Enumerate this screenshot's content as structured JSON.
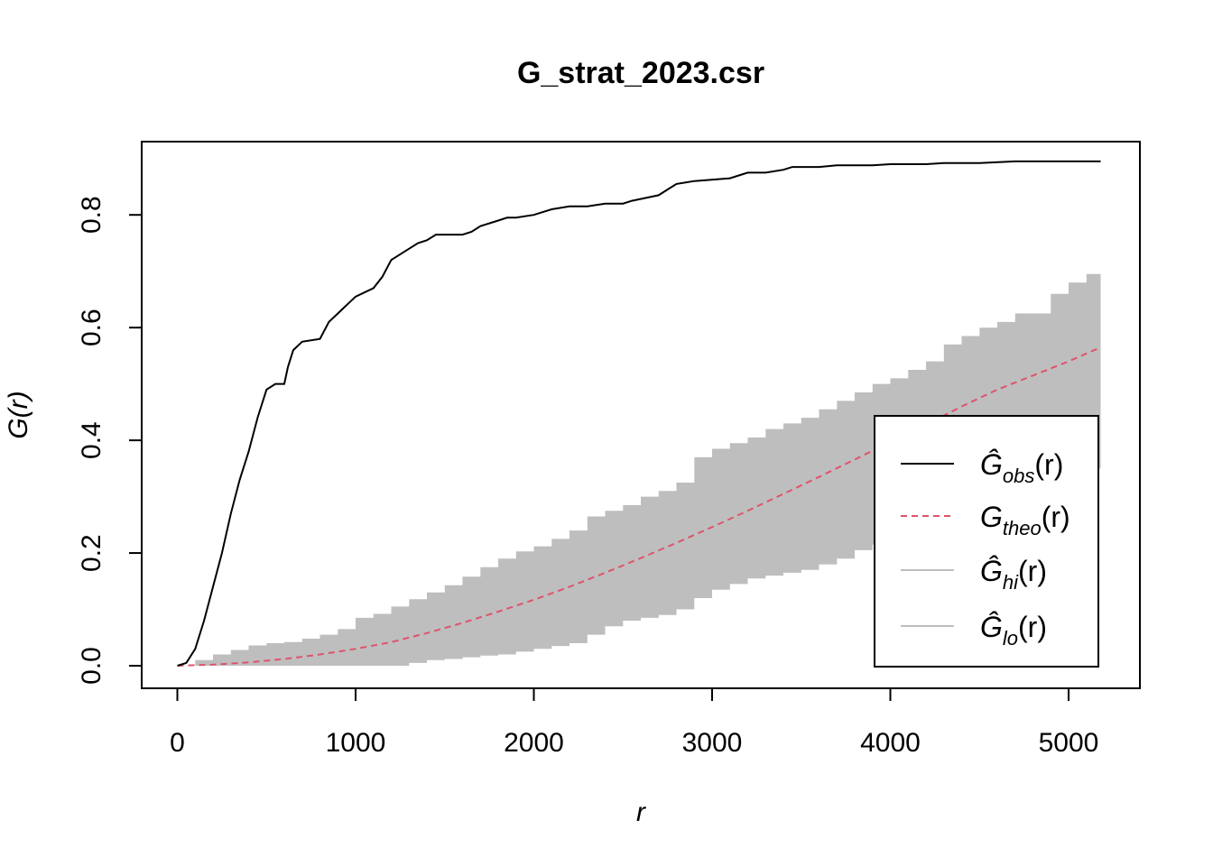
{
  "chart_data": {
    "type": "line",
    "title": "G_strat_2023.csr",
    "xlabel": "r",
    "ylabel": "G(r)",
    "xlim": [
      -200,
      5400
    ],
    "ylim": [
      -0.04,
      0.93
    ],
    "xticks": [
      0,
      1000,
      2000,
      3000,
      4000,
      5000
    ],
    "xtick_labels": [
      "0",
      "1000",
      "2000",
      "3000",
      "4000",
      "5000"
    ],
    "yticks": [
      0.0,
      0.2,
      0.4,
      0.6,
      0.8
    ],
    "ytick_labels": [
      "0.0",
      "0.2",
      "0.4",
      "0.6",
      "0.8"
    ],
    "grid": false,
    "legend_position": "bottom-right",
    "colors": {
      "obs": "#000000",
      "theo": "#DF536B",
      "envelope": "#BEBEBE"
    },
    "series": [
      {
        "key": "obs",
        "legend_main": "Ĝ",
        "legend_sub": "obs",
        "legend_tail": "(r)",
        "style": "solid",
        "x": [
          0,
          50,
          100,
          150,
          200,
          250,
          300,
          350,
          400,
          450,
          500,
          550,
          600,
          620,
          650,
          700,
          800,
          850,
          900,
          1000,
          1100,
          1150,
          1200,
          1300,
          1350,
          1400,
          1450,
          1500,
          1600,
          1650,
          1700,
          1800,
          1850,
          1900,
          2000,
          2050,
          2100,
          2200,
          2300,
          2400,
          2500,
          2550,
          2700,
          2750,
          2800,
          2900,
          3100,
          3150,
          3200,
          3300,
          3400,
          3450,
          3500,
          3600,
          3700,
          3800,
          3900,
          4000,
          4100,
          4200,
          4300,
          4500,
          4700,
          4800,
          4900,
          5000,
          5100,
          5180
        ],
        "y": [
          0.0,
          0.005,
          0.03,
          0.08,
          0.14,
          0.2,
          0.27,
          0.33,
          0.38,
          0.44,
          0.49,
          0.5,
          0.5,
          0.53,
          0.56,
          0.575,
          0.58,
          0.61,
          0.625,
          0.655,
          0.67,
          0.69,
          0.72,
          0.74,
          0.75,
          0.755,
          0.765,
          0.765,
          0.765,
          0.77,
          0.78,
          0.79,
          0.795,
          0.795,
          0.8,
          0.805,
          0.81,
          0.815,
          0.815,
          0.82,
          0.82,
          0.825,
          0.835,
          0.845,
          0.855,
          0.86,
          0.865,
          0.87,
          0.875,
          0.875,
          0.88,
          0.885,
          0.885,
          0.885,
          0.888,
          0.888,
          0.888,
          0.89,
          0.89,
          0.89,
          0.892,
          0.892,
          0.895,
          0.895,
          0.895,
          0.895,
          0.895,
          0.895
        ]
      },
      {
        "key": "theo",
        "legend_main": "G",
        "legend_sub": "theo",
        "legend_tail": "(r)",
        "style": "dashed",
        "x": [
          0,
          200,
          400,
          600,
          800,
          1000,
          1200,
          1400,
          1600,
          1800,
          2000,
          2200,
          2400,
          2600,
          2800,
          3000,
          3200,
          3400,
          3600,
          3800,
          4000,
          4200,
          4400,
          4600,
          4800,
          5000,
          5180
        ],
        "y": [
          0.0,
          0.002,
          0.006,
          0.012,
          0.02,
          0.03,
          0.042,
          0.058,
          0.076,
          0.096,
          0.117,
          0.14,
          0.165,
          0.191,
          0.218,
          0.246,
          0.275,
          0.305,
          0.335,
          0.366,
          0.397,
          0.428,
          0.46,
          0.49,
          0.515,
          0.54,
          0.565
        ]
      },
      {
        "key": "hi",
        "legend_main": "Ĝ",
        "legend_sub": "hi",
        "legend_tail": "(r)",
        "style": "envelope",
        "x": [
          0,
          100,
          200,
          300,
          400,
          500,
          600,
          700,
          800,
          900,
          1000,
          1100,
          1200,
          1300,
          1400,
          1500,
          1600,
          1700,
          1800,
          1900,
          2000,
          2100,
          2200,
          2300,
          2400,
          2500,
          2600,
          2700,
          2800,
          2900,
          3000,
          3100,
          3200,
          3300,
          3400,
          3500,
          3600,
          3700,
          3800,
          3900,
          4000,
          4100,
          4200,
          4300,
          4400,
          4500,
          4600,
          4700,
          4800,
          4900,
          5000,
          5100,
          5180
        ],
        "y": [
          0.0,
          0.01,
          0.02,
          0.028,
          0.036,
          0.04,
          0.042,
          0.048,
          0.055,
          0.065,
          0.085,
          0.092,
          0.105,
          0.118,
          0.13,
          0.143,
          0.158,
          0.175,
          0.19,
          0.203,
          0.212,
          0.225,
          0.24,
          0.265,
          0.275,
          0.285,
          0.3,
          0.31,
          0.325,
          0.37,
          0.385,
          0.395,
          0.405,
          0.42,
          0.43,
          0.44,
          0.455,
          0.47,
          0.485,
          0.5,
          0.51,
          0.525,
          0.54,
          0.57,
          0.585,
          0.6,
          0.61,
          0.625,
          0.625,
          0.66,
          0.68,
          0.695,
          0.71
        ]
      },
      {
        "key": "lo",
        "legend_main": "Ĝ",
        "legend_sub": "lo",
        "legend_tail": "(r)",
        "style": "envelope",
        "x": [
          0,
          100,
          200,
          300,
          400,
          500,
          600,
          700,
          800,
          900,
          1000,
          1100,
          1200,
          1300,
          1400,
          1500,
          1600,
          1700,
          1800,
          1900,
          2000,
          2100,
          2200,
          2300,
          2400,
          2500,
          2600,
          2700,
          2800,
          2900,
          3000,
          3100,
          3200,
          3300,
          3400,
          3500,
          3600,
          3700,
          3800,
          3900,
          4000,
          4100,
          4200,
          4300,
          4400,
          4500,
          4600,
          4700,
          4800,
          4900,
          5000,
          5100,
          5180
        ],
        "y": [
          0.0,
          0.0,
          0.0,
          0.0,
          0.0,
          0.0,
          0.0,
          0.0,
          0.0,
          0.0,
          0.0,
          0.0,
          0.0,
          0.005,
          0.01,
          0.012,
          0.015,
          0.018,
          0.02,
          0.025,
          0.03,
          0.035,
          0.04,
          0.055,
          0.07,
          0.08,
          0.085,
          0.09,
          0.1,
          0.12,
          0.135,
          0.145,
          0.155,
          0.16,
          0.165,
          0.17,
          0.18,
          0.19,
          0.205,
          0.215,
          0.225,
          0.235,
          0.245,
          0.255,
          0.265,
          0.28,
          0.295,
          0.31,
          0.32,
          0.33,
          0.34,
          0.35,
          0.355
        ]
      }
    ]
  }
}
